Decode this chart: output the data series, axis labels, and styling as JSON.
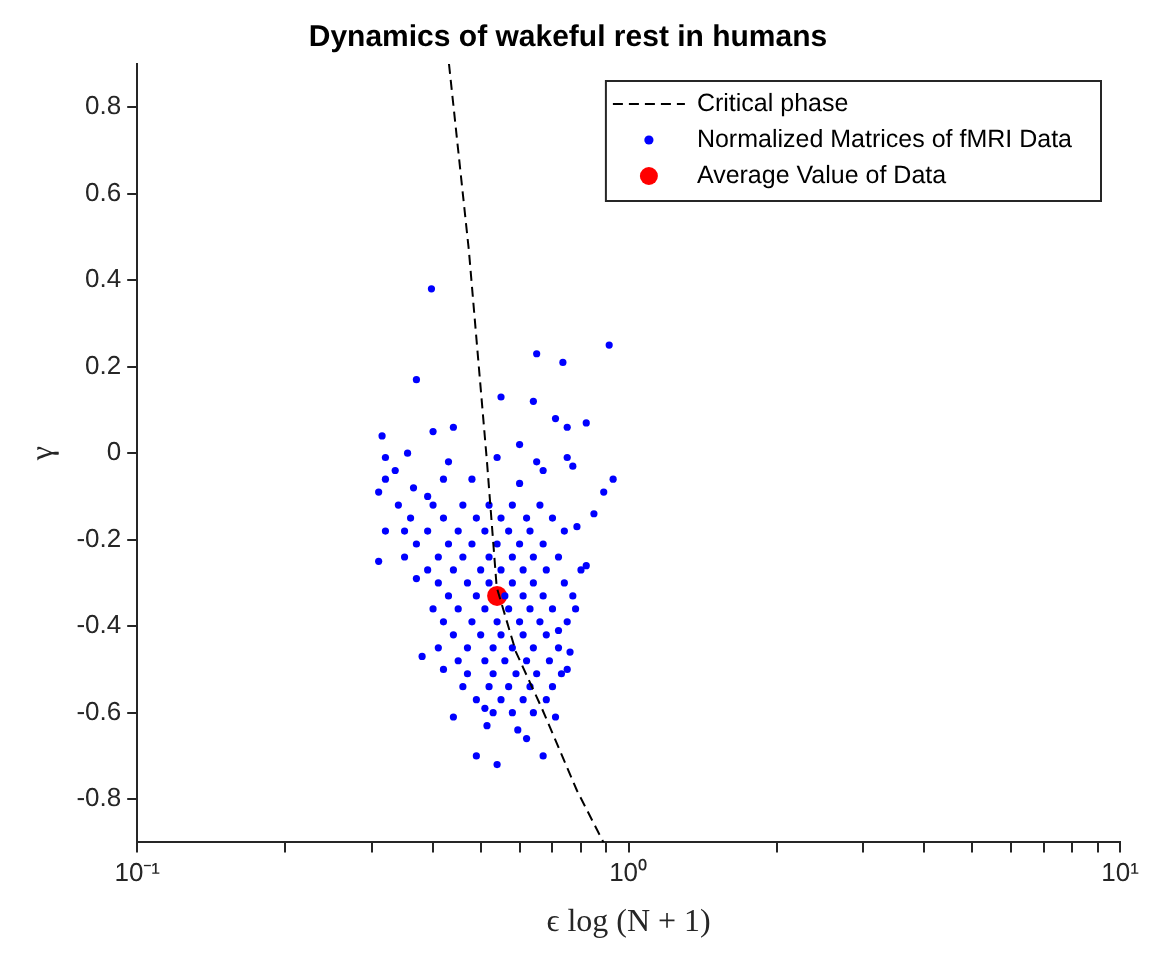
{
  "chart_data": {
    "type": "scatter",
    "title": "Dynamics of wakeful rest in humans",
    "xlabel": "ϵ log (N + 1)",
    "ylabel": "γ",
    "log": "x",
    "xlim": [
      0.1,
      10
    ],
    "ylim": [
      -0.9,
      0.9
    ],
    "xticks": [
      {
        "value": 0.1,
        "label": "10⁻¹"
      },
      {
        "value": 0.2,
        "label": null
      },
      {
        "value": 0.3,
        "label": null
      },
      {
        "value": 0.4,
        "label": null
      },
      {
        "value": 0.5,
        "label": null
      },
      {
        "value": 0.6,
        "label": null
      },
      {
        "value": 0.7,
        "label": null
      },
      {
        "value": 0.8,
        "label": null
      },
      {
        "value": 0.9,
        "label": null
      },
      {
        "value": 1,
        "label": "10⁰"
      },
      {
        "value": 2,
        "label": null
      },
      {
        "value": 3,
        "label": null
      },
      {
        "value": 4,
        "label": null
      },
      {
        "value": 5,
        "label": null
      },
      {
        "value": 6,
        "label": null
      },
      {
        "value": 7,
        "label": null
      },
      {
        "value": 8,
        "label": null
      },
      {
        "value": 9,
        "label": null
      },
      {
        "value": 10,
        "label": "10¹"
      }
    ],
    "yticks": [
      -0.8,
      -0.6,
      -0.4,
      -0.2,
      0,
      0.2,
      0.4,
      0.6,
      0.8
    ],
    "grid": false,
    "legend": "top right",
    "marker": "circle",
    "series": [
      {
        "name": "Critical phase",
        "type": "line",
        "color": "#000000",
        "line_style": "dashed",
        "marker": "none",
        "x": [
          0.431,
          0.473,
          0.515,
          0.539,
          0.59,
          0.666,
          0.785,
          0.889
        ],
        "values": [
          0.9,
          0.47,
          -0.02,
          -0.31,
          -0.46,
          -0.59,
          -0.78,
          -0.9
        ]
      },
      {
        "name": "Normalized Matrices of fMRI Data",
        "type": "scatter",
        "color": "#0000ff",
        "x": [
          0.397,
          0.913,
          0.65,
          0.735,
          0.37,
          0.55,
          0.64,
          0.71,
          0.82,
          0.44,
          0.75,
          0.315,
          0.4,
          0.6,
          0.32,
          0.355,
          0.75,
          0.43,
          0.54,
          0.65,
          0.335,
          0.32,
          0.77,
          0.93,
          0.42,
          0.48,
          0.67,
          0.31,
          0.89,
          0.365,
          0.6,
          0.39,
          0.85,
          0.49,
          0.54,
          0.67,
          0.44,
          0.515,
          0.595,
          0.38,
          0.31,
          0.32,
          0.82,
          0.785,
          0.37,
          0.42,
          0.75,
          0.76,
          0.72,
          0.77,
          0.62,
          0.71,
          0.51,
          0.34,
          0.4,
          0.46,
          0.52,
          0.58,
          0.66,
          0.36,
          0.42,
          0.49,
          0.55,
          0.62,
          0.7,
          0.35,
          0.39,
          0.45,
          0.51,
          0.57,
          0.63,
          0.74,
          0.37,
          0.43,
          0.48,
          0.54,
          0.6,
          0.67,
          0.35,
          0.41,
          0.46,
          0.52,
          0.58,
          0.64,
          0.72,
          0.39,
          0.44,
          0.5,
          0.55,
          0.61,
          0.68,
          0.8,
          0.41,
          0.47,
          0.52,
          0.58,
          0.64,
          0.74,
          0.43,
          0.49,
          0.56,
          0.61,
          0.67,
          0.4,
          0.45,
          0.51,
          0.57,
          0.63,
          0.7,
          0.78,
          0.42,
          0.48,
          0.54,
          0.6,
          0.66,
          0.75,
          0.44,
          0.5,
          0.55,
          0.61,
          0.68,
          0.41,
          0.47,
          0.53,
          0.58,
          0.64,
          0.72,
          0.45,
          0.51,
          0.56,
          0.62,
          0.69,
          0.47,
          0.53,
          0.59,
          0.65,
          0.73,
          0.46,
          0.52,
          0.57,
          0.63,
          0.7,
          0.49,
          0.55,
          0.61,
          0.68,
          0.53,
          0.58,
          0.64
        ],
        "values": [
          0.38,
          0.25,
          0.23,
          0.21,
          0.17,
          0.13,
          0.12,
          0.08,
          0.07,
          0.06,
          0.06,
          0.04,
          0.05,
          0.02,
          -0.01,
          0,
          -0.01,
          -0.02,
          -0.01,
          -0.02,
          -0.04,
          -0.06,
          -0.03,
          -0.06,
          -0.06,
          -0.06,
          -0.04,
          -0.09,
          -0.09,
          -0.08,
          -0.07,
          -0.1,
          -0.14,
          -0.7,
          -0.72,
          -0.7,
          -0.61,
          -0.63,
          -0.64,
          -0.47,
          -0.25,
          -0.18,
          -0.26,
          -0.17,
          -0.29,
          -0.5,
          -0.5,
          -0.46,
          -0.41,
          -0.33,
          -0.66,
          -0.61,
          -0.59,
          -0.12,
          -0.12,
          -0.12,
          -0.12,
          -0.12,
          -0.12,
          -0.15,
          -0.15,
          -0.15,
          -0.15,
          -0.15,
          -0.15,
          -0.18,
          -0.18,
          -0.18,
          -0.18,
          -0.18,
          -0.18,
          -0.18,
          -0.21,
          -0.21,
          -0.21,
          -0.21,
          -0.21,
          -0.21,
          -0.24,
          -0.24,
          -0.24,
          -0.24,
          -0.24,
          -0.24,
          -0.24,
          -0.27,
          -0.27,
          -0.27,
          -0.27,
          -0.27,
          -0.27,
          -0.27,
          -0.3,
          -0.3,
          -0.3,
          -0.3,
          -0.3,
          -0.3,
          -0.33,
          -0.33,
          -0.33,
          -0.33,
          -0.33,
          -0.36,
          -0.36,
          -0.36,
          -0.36,
          -0.36,
          -0.36,
          -0.36,
          -0.39,
          -0.39,
          -0.39,
          -0.39,
          -0.39,
          -0.39,
          -0.42,
          -0.42,
          -0.42,
          -0.42,
          -0.42,
          -0.45,
          -0.45,
          -0.45,
          -0.45,
          -0.45,
          -0.45,
          -0.48,
          -0.48,
          -0.48,
          -0.48,
          -0.48,
          -0.51,
          -0.51,
          -0.51,
          -0.51,
          -0.51,
          -0.54,
          -0.54,
          -0.54,
          -0.54,
          -0.54,
          -0.57,
          -0.57,
          -0.57,
          -0.57,
          -0.6,
          -0.6,
          -0.6
        ]
      },
      {
        "name": "Average Value of Data",
        "type": "scatter",
        "color": "#ff0000",
        "x": [
          0.54
        ],
        "values": [
          -0.33
        ]
      }
    ]
  }
}
